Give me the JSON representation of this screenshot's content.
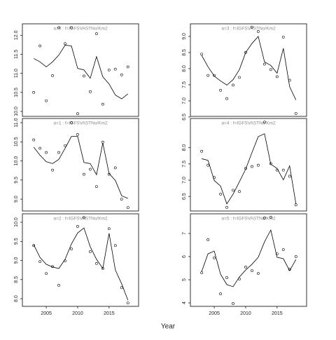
{
  "chart_data": [
    {
      "type": "scatter",
      "title": "a=0  :  f=IGFSVASTNo/Km2",
      "x": [
        2003,
        2004,
        2005,
        2006,
        2007,
        2008,
        2009,
        2010,
        2011,
        2012,
        2013,
        2014,
        2015,
        2016,
        2017,
        2018
      ],
      "values": [
        10.5,
        11.72,
        10.28,
        10.94,
        12.2,
        11.78,
        12.2,
        9.94,
        10.93,
        10.52,
        12.04,
        10.19,
        11.09,
        11.11,
        10.96,
        11.17
      ],
      "line_values": [
        11.39,
        11.3,
        11.17,
        11.3,
        11.48,
        11.74,
        11.72,
        11.13,
        11.09,
        10.87,
        11.44,
        10.91,
        10.72,
        10.43,
        10.33,
        10.46
      ],
      "xlim": [
        2001.2,
        2019.7
      ],
      "ylim": [
        9.87,
        12.3
      ],
      "yticks": [
        {
          "value": 10,
          "label": "10.0"
        },
        10.5,
        {
          "value": 11,
          "label": "11.0"
        },
        11.5,
        {
          "value": 12,
          "label": "12.0"
        }
      ]
    },
    {
      "type": "scatter",
      "title": "a=1  :  f=IGFSVASTNo/Km2",
      "x": [
        2003,
        2004,
        2005,
        2006,
        2007,
        2008,
        2009,
        2010,
        2011,
        2012,
        2013,
        2014,
        2015,
        2016,
        2017,
        2018
      ],
      "values": [
        10.55,
        10.33,
        10.22,
        9.76,
        10.22,
        10.4,
        11.0,
        10.69,
        9.65,
        9.78,
        9.33,
        10.49,
        9.65,
        9.82,
        9.0,
        8.78
      ],
      "line_values": [
        10.36,
        10.15,
        9.98,
        9.93,
        10.04,
        10.33,
        10.64,
        10.64,
        9.96,
        9.93,
        9.64,
        10.47,
        9.67,
        9.49,
        9.09,
        9.02
      ],
      "xlim": [
        2001.2,
        2019.7
      ],
      "ylim": [
        8.69,
        11.11
      ],
      "yticks": [
        {
          "value": 9,
          "label": "9.0"
        },
        9.5,
        {
          "value": 10,
          "label": "10.0"
        },
        10.5,
        {
          "value": 11,
          "label": "11.0"
        }
      ]
    },
    {
      "type": "scatter",
      "title": "a=2  :  f=IGFSVASTNo/Km2",
      "x": [
        2003,
        2004,
        2005,
        2006,
        2007,
        2008,
        2009,
        2010,
        2011,
        2012,
        2013,
        2014,
        2015,
        2016,
        2017,
        2018
      ],
      "values": [
        9.39,
        8.97,
        8.66,
        8.84,
        8.35,
        8.99,
        9.3,
        9.89,
        10.12,
        9.23,
        8.92,
        8.79,
        9.83,
        9.39,
        8.29,
        7.89
      ],
      "line_values": [
        9.41,
        9.08,
        8.9,
        8.83,
        8.79,
        9.03,
        9.43,
        9.72,
        9.85,
        9.36,
        9.03,
        8.79,
        9.71,
        8.75,
        8.39,
        7.96
      ],
      "xlim": [
        2001.2,
        2019.7
      ],
      "ylim": [
        7.8,
        10.22
      ],
      "xticks": [
        2005,
        2010,
        2015
      ],
      "yticks": [
        {
          "value": 8,
          "label": "8.0"
        },
        8.5,
        {
          "value": 9,
          "label": "9.0"
        },
        9.5,
        {
          "value": 10,
          "label": "10.0"
        }
      ]
    },
    {
      "type": "scatter",
      "title": "a=3  :  f=IGFSVASTNo/Km2",
      "x": [
        2003,
        2004,
        2005,
        2006,
        2007,
        2008,
        2009,
        2010,
        2011,
        2012,
        2013,
        2014,
        2015,
        2016,
        2017,
        2018
      ],
      "values": [
        8.45,
        7.79,
        7.79,
        7.33,
        7.07,
        7.49,
        7.73,
        8.5,
        9.29,
        9.15,
        8.14,
        7.97,
        7.75,
        8.98,
        7.64,
        6.61
      ],
      "line_values": [
        8.41,
        8.06,
        7.77,
        7.62,
        7.49,
        7.66,
        7.97,
        8.5,
        8.78,
        9.0,
        8.21,
        8.1,
        7.86,
        8.63,
        7.44,
        7.03
      ],
      "xlim": [
        2001.2,
        2019.7
      ],
      "ylim": [
        6.52,
        9.39
      ],
      "yticks": [
        6.5,
        {
          "value": 7,
          "label": "7.0"
        },
        7.5,
        {
          "value": 8,
          "label": "8.0"
        },
        8.5,
        {
          "value": 9,
          "label": "9.0"
        }
      ]
    },
    {
      "type": "scatter",
      "title": "a=4  :  f=IGFSVASTNo/Km2",
      "x": [
        2003,
        2004,
        2005,
        2006,
        2007,
        2008,
        2009,
        2010,
        2011,
        2012,
        2013,
        2014,
        2015,
        2016,
        2017,
        2018
      ],
      "values": [
        7.89,
        7.46,
        7.08,
        6.57,
        6.16,
        6.69,
        6.65,
        7.36,
        7.42,
        7.46,
        8.79,
        7.51,
        7.31,
        7.31,
        7.12,
        6.24
      ],
      "line_values": [
        7.66,
        7.61,
        6.99,
        6.82,
        6.27,
        6.57,
        6.95,
        7.34,
        7.85,
        8.34,
        8.43,
        7.49,
        7.36,
        7.01,
        7.44,
        6.27
      ],
      "xlim": [
        2001.2,
        2019.7
      ],
      "ylim": [
        6.05,
        8.9
      ],
      "yticks": [
        6.5,
        {
          "value": 7,
          "label": "7.0"
        },
        7.5,
        {
          "value": 8,
          "label": "8.0"
        }
      ]
    },
    {
      "type": "scatter",
      "title": "a=5  :  f=IGFSVASTNo/Km2",
      "x": [
        2003,
        2004,
        2005,
        2006,
        2007,
        2008,
        2009,
        2010,
        2011,
        2012,
        2013,
        2014,
        2015,
        2016,
        2017,
        2018
      ],
      "values": [
        5.3,
        6.73,
        5.94,
        4.39,
        5.09,
        3.97,
        5.03,
        5.55,
        5.39,
        5.27,
        7.67,
        7.7,
        6.12,
        6.3,
        5.45,
        6.0
      ],
      "line_values": [
        5.36,
        6.12,
        6.24,
        5.24,
        4.79,
        4.7,
        5.12,
        5.42,
        5.67,
        5.97,
        6.64,
        7.15,
        5.97,
        5.91,
        5.39,
        5.88
      ],
      "xlim": [
        2001.2,
        2019.7
      ],
      "ylim": [
        3.85,
        7.85
      ],
      "xticks": [
        2005,
        2010,
        2015
      ],
      "yticks": [
        4,
        5,
        6,
        7
      ]
    }
  ],
  "xlabel": "Year"
}
